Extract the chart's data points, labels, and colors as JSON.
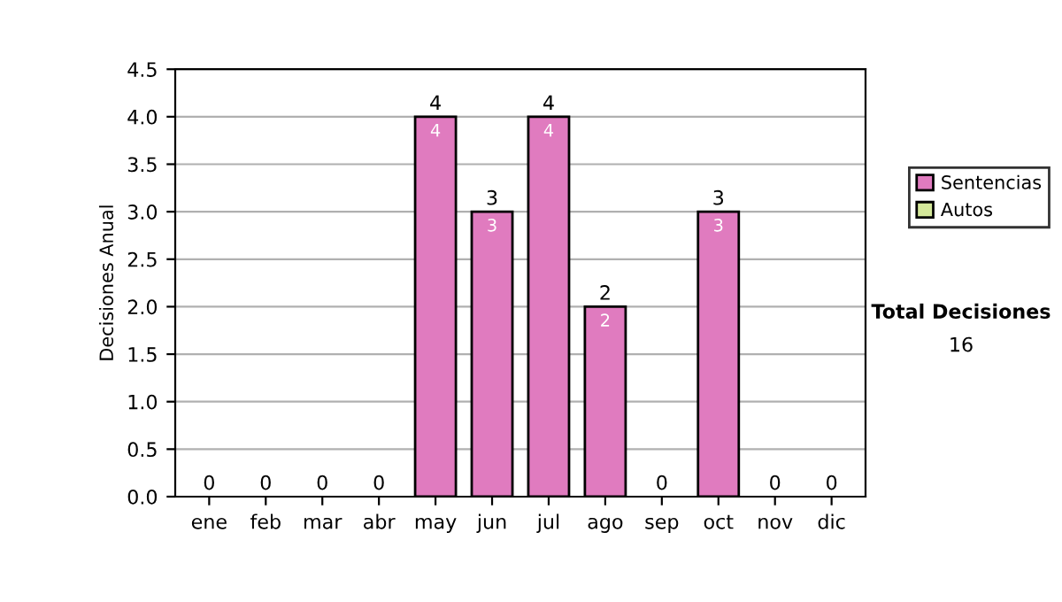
{
  "chart_data": {
    "type": "bar",
    "ylabel": "Decisiones Anual",
    "categories": [
      "ene",
      "feb",
      "mar",
      "abr",
      "may",
      "jun",
      "jul",
      "ago",
      "sep",
      "oct",
      "nov",
      "dic"
    ],
    "stacked": true,
    "series": [
      {
        "name": "Sentencias",
        "color": "#e07bbf",
        "values": [
          0,
          0,
          0,
          0,
          4,
          3,
          4,
          2,
          0,
          3,
          0,
          0
        ],
        "value_labels": [
          null,
          null,
          null,
          null,
          "4",
          "3",
          "4",
          "2",
          null,
          "3",
          null,
          null
        ]
      },
      {
        "name": "Autos",
        "color": "#d4e89a",
        "values": [
          0,
          0,
          0,
          0,
          0,
          0,
          0,
          0,
          0,
          0,
          0,
          0
        ]
      }
    ],
    "totals": [
      "0",
      "0",
      "0",
      "0",
      "4",
      "3",
      "4",
      "2",
      "0",
      "3",
      "0",
      "0"
    ],
    "ylim": [
      0,
      4.5
    ],
    "yticks": [
      {
        "value": 0,
        "label": "0.0"
      },
      {
        "value": 0.5,
        "label": "0.5"
      },
      {
        "value": 1,
        "label": "1.0"
      },
      {
        "value": 1.5,
        "label": "1.5"
      },
      {
        "value": 2,
        "label": "2.0"
      },
      {
        "value": 2.5,
        "label": "2.5"
      },
      {
        "value": 3,
        "label": "3.0"
      },
      {
        "value": 3.5,
        "label": "3.5"
      },
      {
        "value": 4,
        "label": "4.0"
      },
      {
        "value": 4.5,
        "label": "4.5"
      }
    ],
    "grid": "y",
    "legend": "right",
    "annotations": [
      "Total Decisiones",
      "16"
    ]
  }
}
